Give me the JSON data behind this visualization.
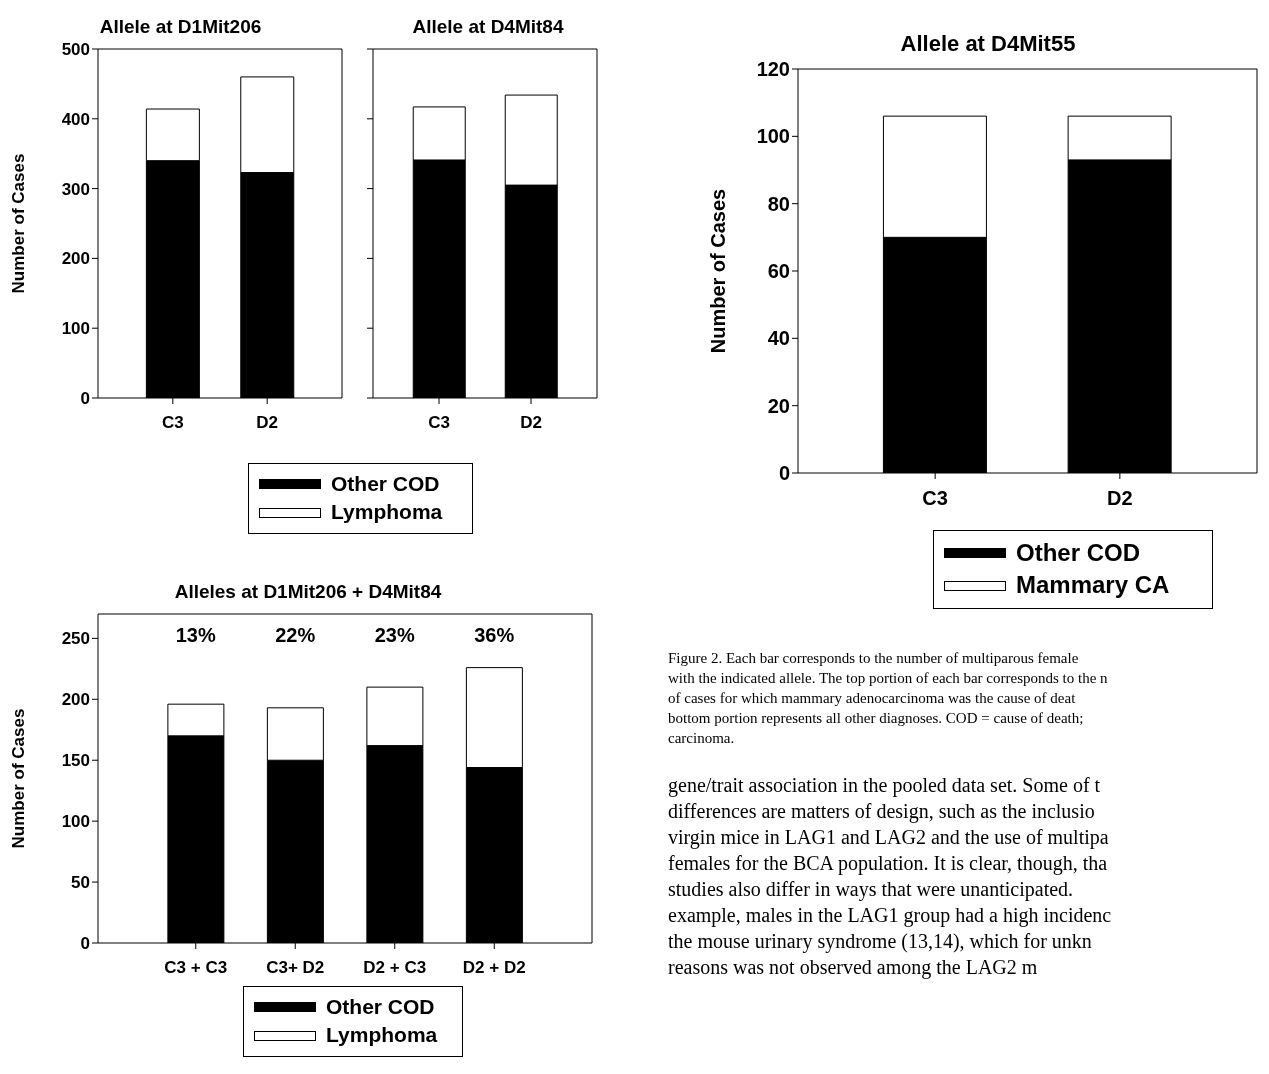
{
  "chart_data": [
    {
      "type": "bar",
      "title": "Allele at D1Mit206",
      "ylabel": "Number of Cases",
      "categories": [
        "C3",
        "D2"
      ],
      "stacked": true,
      "legend": "bottom",
      "ylim": [
        0,
        500
      ],
      "yticks": [
        0,
        100,
        200,
        300,
        400,
        500
      ],
      "series": [
        {
          "name": "Other COD",
          "color": "#000000",
          "values": [
            340,
            323
          ]
        },
        {
          "name": "Lymphoma",
          "color": "#ffffff",
          "values": [
            74,
            137
          ]
        }
      ]
    },
    {
      "type": "bar",
      "title": "Allele at D4Mit84",
      "categories": [
        "C3",
        "D2"
      ],
      "stacked": true,
      "tick_labels": "x",
      "ylim": [
        0,
        500
      ],
      "yticks": [
        0,
        100,
        200,
        300,
        400,
        500
      ],
      "series": [
        {
          "color": "#000000",
          "values": [
            341,
            305
          ]
        },
        {
          "color": "#ffffff",
          "values": [
            76,
            129
          ]
        }
      ]
    },
    {
      "type": "bar",
      "title": "Alleles at D1Mit206 + D4Mit84",
      "ylabel": "Number of Cases",
      "categories": [
        "C3 + C3",
        "C3+ D2",
        "D2 + C3",
        "D2 + D2"
      ],
      "stacked": true,
      "legend": "bottom",
      "ylim": [
        0,
        270
      ],
      "yticks": [
        0,
        50,
        100,
        150,
        200,
        250
      ],
      "annotations": [
        "13%",
        "22%",
        "23%",
        "36%"
      ],
      "series": [
        {
          "name": "Other COD",
          "color": "#000000",
          "values": [
            170,
            150,
            162,
            144
          ]
        },
        {
          "name": "Lymphoma",
          "color": "#ffffff",
          "values": [
            26,
            43,
            48,
            82
          ]
        }
      ]
    },
    {
      "type": "bar",
      "title": "Allele at D4Mit55",
      "ylabel": "Number of Cases",
      "categories": [
        "C3",
        "D2"
      ],
      "stacked": true,
      "legend": "bottom",
      "ylim": [
        0,
        120
      ],
      "yticks": [
        0,
        20,
        40,
        60,
        80,
        100,
        120
      ],
      "annotations": [
        "Figure 2. Each bar corresponds to the number of multiparous female",
        "with the indicated allele. The top portion of each bar corresponds to the n",
        "of cases for which mammary adenocarcinoma was the cause of deat",
        "bottom portion represents all other diagnoses. COD = cause of death;",
        "carcinoma.",
        "gene/trait association in the pooled data set. Some of t",
        "differences are matters of design, such as the inclusio",
        "virgin mice in LAG1 and LAG2 and the use of multipa",
        "females for the BCA population. It is clear, though, tha",
        "studies also differ in ways that were unanticipated.",
        "example, males in the LAG1 group had a high incidenc",
        "the mouse urinary syndrome (13,14), which for unkn",
        "reasons was not observed among the LAG2 m"
      ],
      "series": [
        {
          "name": "Other COD",
          "color": "#000000",
          "values": [
            70,
            93
          ]
        },
        {
          "name": "Mammary CA",
          "color": "#ffffff",
          "values": [
            36,
            13
          ]
        }
      ]
    }
  ]
}
